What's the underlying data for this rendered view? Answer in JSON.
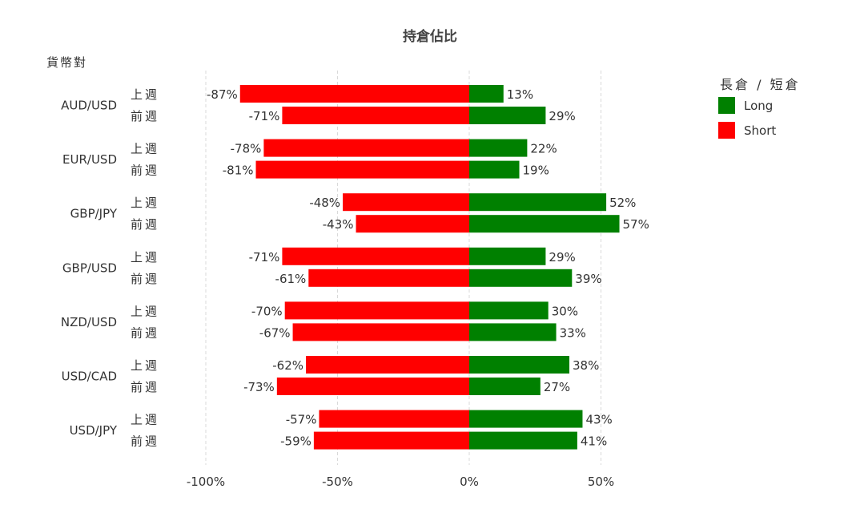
{
  "chart_data": {
    "type": "bar",
    "orientation": "horizontal",
    "stacked": "diverging",
    "title": "持倉佔比",
    "ylabel": "貨幣對",
    "xlabel": "",
    "xlim": [
      -100,
      70
    ],
    "xticks": [
      -100,
      -50,
      0,
      50
    ],
    "xtick_labels": [
      "-100%",
      "-50%",
      "0%",
      "50%"
    ],
    "grid": true,
    "legend_placement": "right",
    "legend_title": "長倉 / 短倉",
    "periods": [
      "上週",
      "前週"
    ],
    "categories": [
      "AUD/USD",
      "EUR/USD",
      "GBP/JPY",
      "GBP/USD",
      "NZD/USD",
      "USD/CAD",
      "USD/JPY"
    ],
    "series": [
      {
        "name": "Long",
        "color": "#008000",
        "values": [
          [
            13,
            29
          ],
          [
            22,
            19
          ],
          [
            52,
            57
          ],
          [
            29,
            39
          ],
          [
            30,
            33
          ],
          [
            38,
            27
          ],
          [
            43,
            41
          ]
        ],
        "labels": [
          [
            "13%",
            "29%"
          ],
          [
            "22%",
            "19%"
          ],
          [
            "52%",
            "57%"
          ],
          [
            "29%",
            "39%"
          ],
          [
            "30%",
            "33%"
          ],
          [
            "38%",
            "27%"
          ],
          [
            "43%",
            "41%"
          ]
        ]
      },
      {
        "name": "Short",
        "color": "#ff0000",
        "values": [
          [
            -87,
            -71
          ],
          [
            -78,
            -81
          ],
          [
            -48,
            -43
          ],
          [
            -71,
            -61
          ],
          [
            -70,
            -67
          ],
          [
            -62,
            -73
          ],
          [
            -57,
            -59
          ]
        ],
        "labels": [
          [
            "-87%",
            "-71%"
          ],
          [
            "-78%",
            "-81%"
          ],
          [
            "-48%",
            "-43%"
          ],
          [
            "-71%",
            "-61%"
          ],
          [
            "-70%",
            "-67%"
          ],
          [
            "-62%",
            "-73%"
          ],
          [
            "-57%",
            "-59%"
          ]
        ]
      }
    ]
  }
}
